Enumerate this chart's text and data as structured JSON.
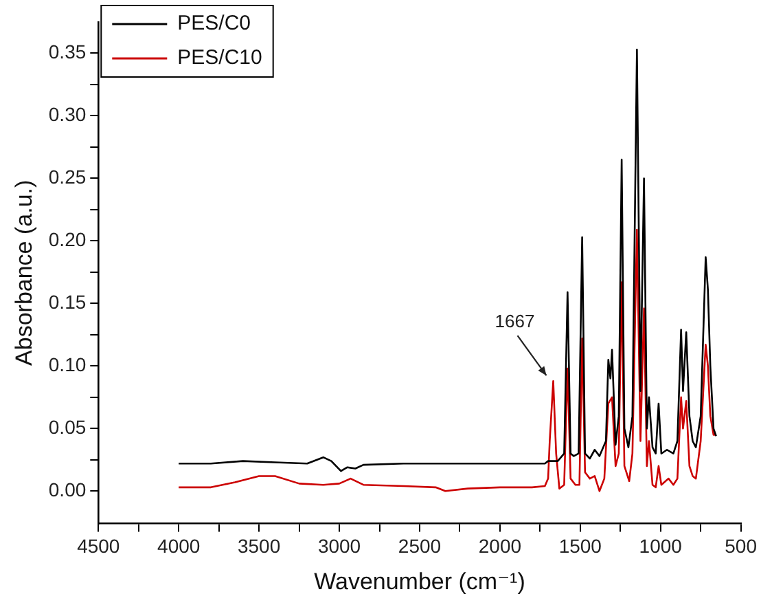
{
  "chart_data": {
    "type": "line",
    "xlabel": "Wavenumber (cm⁻¹)",
    "ylabel": "Absorbance (a.u.)",
    "xlim": [
      4500,
      500
    ],
    "ylim": [
      -0.026,
      0.375
    ],
    "xticks": [
      4500,
      {
        "value": 4250,
        "label": null
      },
      4000,
      {
        "value": 3750,
        "label": null
      },
      3500,
      {
        "value": 3250,
        "label": null
      },
      3000,
      {
        "value": 2750,
        "label": null
      },
      2500,
      {
        "value": 2250,
        "label": null
      },
      2000,
      {
        "value": 1750,
        "label": null
      },
      1500,
      {
        "value": 1250,
        "label": null
      },
      1000,
      {
        "value": 750,
        "label": null
      },
      500
    ],
    "yticks": [
      {
        "value": 0,
        "label": "0.00"
      },
      {
        "value": 0.025,
        "label": null
      },
      0.05,
      {
        "value": 0.075,
        "label": null
      },
      {
        "value": 0.1,
        "label": "0.10"
      },
      {
        "value": 0.125,
        "label": null
      },
      0.15,
      {
        "value": 0.175,
        "label": null
      },
      {
        "value": 0.2,
        "label": "0.20"
      },
      {
        "value": 0.225,
        "label": null
      },
      0.25,
      {
        "value": 0.275,
        "label": null
      },
      {
        "value": 0.3,
        "label": "0.30"
      },
      {
        "value": 0.325,
        "label": null
      },
      0.35
    ],
    "grid": false,
    "legend": "top left",
    "marker": "none",
    "line_style": "solid",
    "annotations": [
      {
        "text": "1667",
        "x": 1668,
        "y": 0.088
      }
    ],
    "series": [
      {
        "name": "PES/C0",
        "color": "#000000",
        "x": [
          4000,
          3800,
          3600,
          3400,
          3200,
          3100,
          3050,
          2990,
          2950,
          2900,
          2850,
          2600,
          2300,
          2000,
          1800,
          1720,
          1700,
          1640,
          1600,
          1579,
          1560,
          1540,
          1510,
          1488,
          1470,
          1440,
          1410,
          1380,
          1340,
          1325,
          1312,
          1302,
          1280,
          1260,
          1242,
          1225,
          1200,
          1175,
          1147,
          1125,
          1103,
          1085,
          1072,
          1050,
          1030,
          1012,
          995,
          960,
          920,
          895,
          872,
          860,
          840,
          820,
          800,
          780,
          750,
          719,
          705,
          690,
          670,
          654
        ],
        "values": [
          0.022,
          0.022,
          0.024,
          0.023,
          0.022,
          0.027,
          0.024,
          0.016,
          0.019,
          0.018,
          0.021,
          0.022,
          0.022,
          0.022,
          0.022,
          0.022,
          0.024,
          0.024,
          0.03,
          0.159,
          0.03,
          0.028,
          0.03,
          0.203,
          0.03,
          0.026,
          0.033,
          0.028,
          0.04,
          0.105,
          0.09,
          0.113,
          0.037,
          0.06,
          0.265,
          0.05,
          0.035,
          0.06,
          0.353,
          0.08,
          0.25,
          0.05,
          0.075,
          0.035,
          0.03,
          0.07,
          0.03,
          0.033,
          0.03,
          0.04,
          0.129,
          0.08,
          0.127,
          0.06,
          0.04,
          0.035,
          0.06,
          0.187,
          0.161,
          0.1,
          0.05,
          0.044
        ]
      },
      {
        "name": "PES/C10",
        "color": "#cc0000",
        "x": [
          4000,
          3800,
          3650,
          3500,
          3400,
          3250,
          3100,
          3000,
          2930,
          2850,
          2600,
          2400,
          2340,
          2200,
          2000,
          1800,
          1720,
          1700,
          1690,
          1668,
          1650,
          1630,
          1600,
          1579,
          1560,
          1530,
          1505,
          1488,
          1470,
          1440,
          1410,
          1380,
          1350,
          1325,
          1302,
          1280,
          1260,
          1242,
          1225,
          1195,
          1175,
          1147,
          1125,
          1103,
          1085,
          1072,
          1050,
          1030,
          1012,
          995,
          950,
          920,
          895,
          872,
          860,
          840,
          820,
          800,
          780,
          750,
          719,
          705,
          690,
          670,
          654
        ],
        "values": [
          0.003,
          0.003,
          0.007,
          0.012,
          0.012,
          0.006,
          0.005,
          0.006,
          0.01,
          0.005,
          0.004,
          0.003,
          0.0,
          0.002,
          0.003,
          0.003,
          0.004,
          0.01,
          0.04,
          0.088,
          0.03,
          0.002,
          0.005,
          0.098,
          0.01,
          0.005,
          0.005,
          0.122,
          0.015,
          0.01,
          0.012,
          0.0,
          0.01,
          0.07,
          0.075,
          0.02,
          0.03,
          0.167,
          0.02,
          0.008,
          0.03,
          0.209,
          0.04,
          0.146,
          0.02,
          0.04,
          0.005,
          0.003,
          0.02,
          0.005,
          0.01,
          0.005,
          0.01,
          0.075,
          0.05,
          0.072,
          0.02,
          0.012,
          0.01,
          0.04,
          0.117,
          0.1,
          0.06,
          0.045,
          0.045
        ]
      }
    ]
  }
}
